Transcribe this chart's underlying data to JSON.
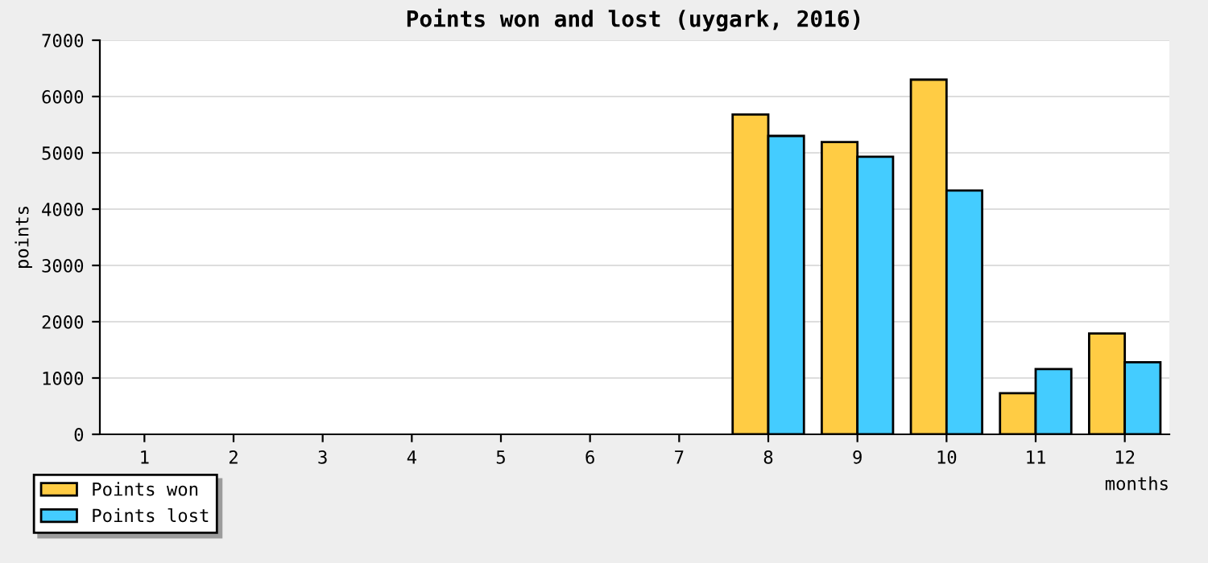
{
  "chart_data": {
    "type": "bar",
    "title": "Points won and lost (uygark, 2016)",
    "xlabel": "months",
    "ylabel": "points",
    "categories": [
      "1",
      "2",
      "3",
      "4",
      "5",
      "6",
      "7",
      "8",
      "9",
      "10",
      "11",
      "12"
    ],
    "series": [
      {
        "name": "Points won",
        "color": "#ffcc44",
        "values": [
          null,
          null,
          null,
          null,
          null,
          null,
          null,
          5680,
          5190,
          6300,
          730,
          1790
        ]
      },
      {
        "name": "Points lost",
        "color": "#44ccff",
        "values": [
          null,
          null,
          null,
          null,
          null,
          null,
          null,
          5300,
          4930,
          4330,
          1160,
          1280
        ]
      }
    ],
    "ylim": [
      0,
      7000
    ],
    "yticks": [
      0,
      1000,
      2000,
      3000,
      4000,
      5000,
      6000,
      7000
    ],
    "grid": "y",
    "legend": "bottom left"
  }
}
